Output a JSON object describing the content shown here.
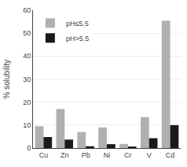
{
  "chart_data": {
    "type": "bar",
    "categories": [
      "Cu",
      "Zn",
      "Pb",
      "Ni",
      "Cr",
      "V",
      "Cd"
    ],
    "series": [
      {
        "name": "pH≤5.5",
        "color": "#b0b0b0",
        "values": [
          9.5,
          17.0,
          7.0,
          9.0,
          1.8,
          13.5,
          55.5
        ]
      },
      {
        "name": "pH>5.5",
        "color": "#1a1a1a",
        "values": [
          4.8,
          3.7,
          0.8,
          1.7,
          0.4,
          4.3,
          10.0
        ]
      }
    ],
    "ylabel": "% solubility",
    "ylim": [
      0,
      60
    ],
    "yticks": [
      0,
      10,
      20,
      30,
      40,
      50,
      60
    ],
    "grid": true,
    "legend": "upper left"
  }
}
